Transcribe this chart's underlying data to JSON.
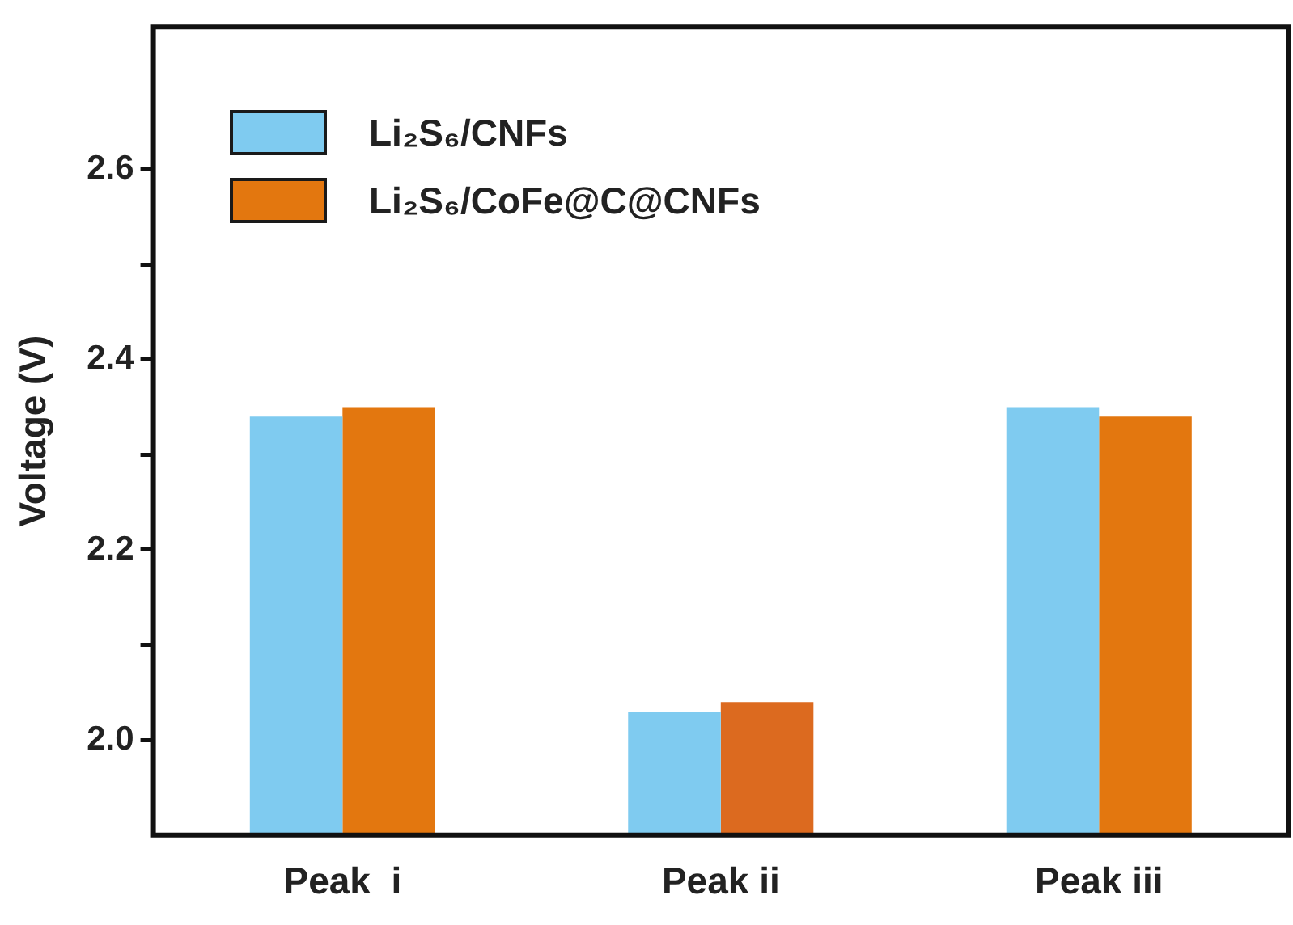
{
  "chart_data": {
    "type": "bar",
    "ylabel": "Voltage (V)",
    "categories": [
      "Peak  i",
      "Peak ii",
      "Peak iii"
    ],
    "series": [
      {
        "name": "Li₂S₆/CNFs",
        "color": "#7fcbf0",
        "values": [
          2.34,
          2.03,
          2.35
        ]
      },
      {
        "name": "Li₂S₆/CoFe@C@CNFs",
        "color": "#e3770f",
        "colors": [
          "#e3770f",
          "#dc6a1f",
          "#e3770f"
        ],
        "values": [
          2.35,
          2.04,
          2.34
        ]
      }
    ],
    "ylim": [
      1.9,
      2.75
    ],
    "yticks": [
      {
        "value": 2.0,
        "label": "2.0"
      },
      {
        "value": 2.1,
        "label": null
      },
      {
        "value": 2.2,
        "label": "2.2"
      },
      {
        "value": 2.3,
        "label": null
      },
      {
        "value": 2.4,
        "label": "2.4"
      },
      {
        "value": 2.5,
        "label": null
      },
      {
        "value": 2.6,
        "label": "2.6"
      }
    ],
    "grid": false,
    "legend": "top left"
  }
}
